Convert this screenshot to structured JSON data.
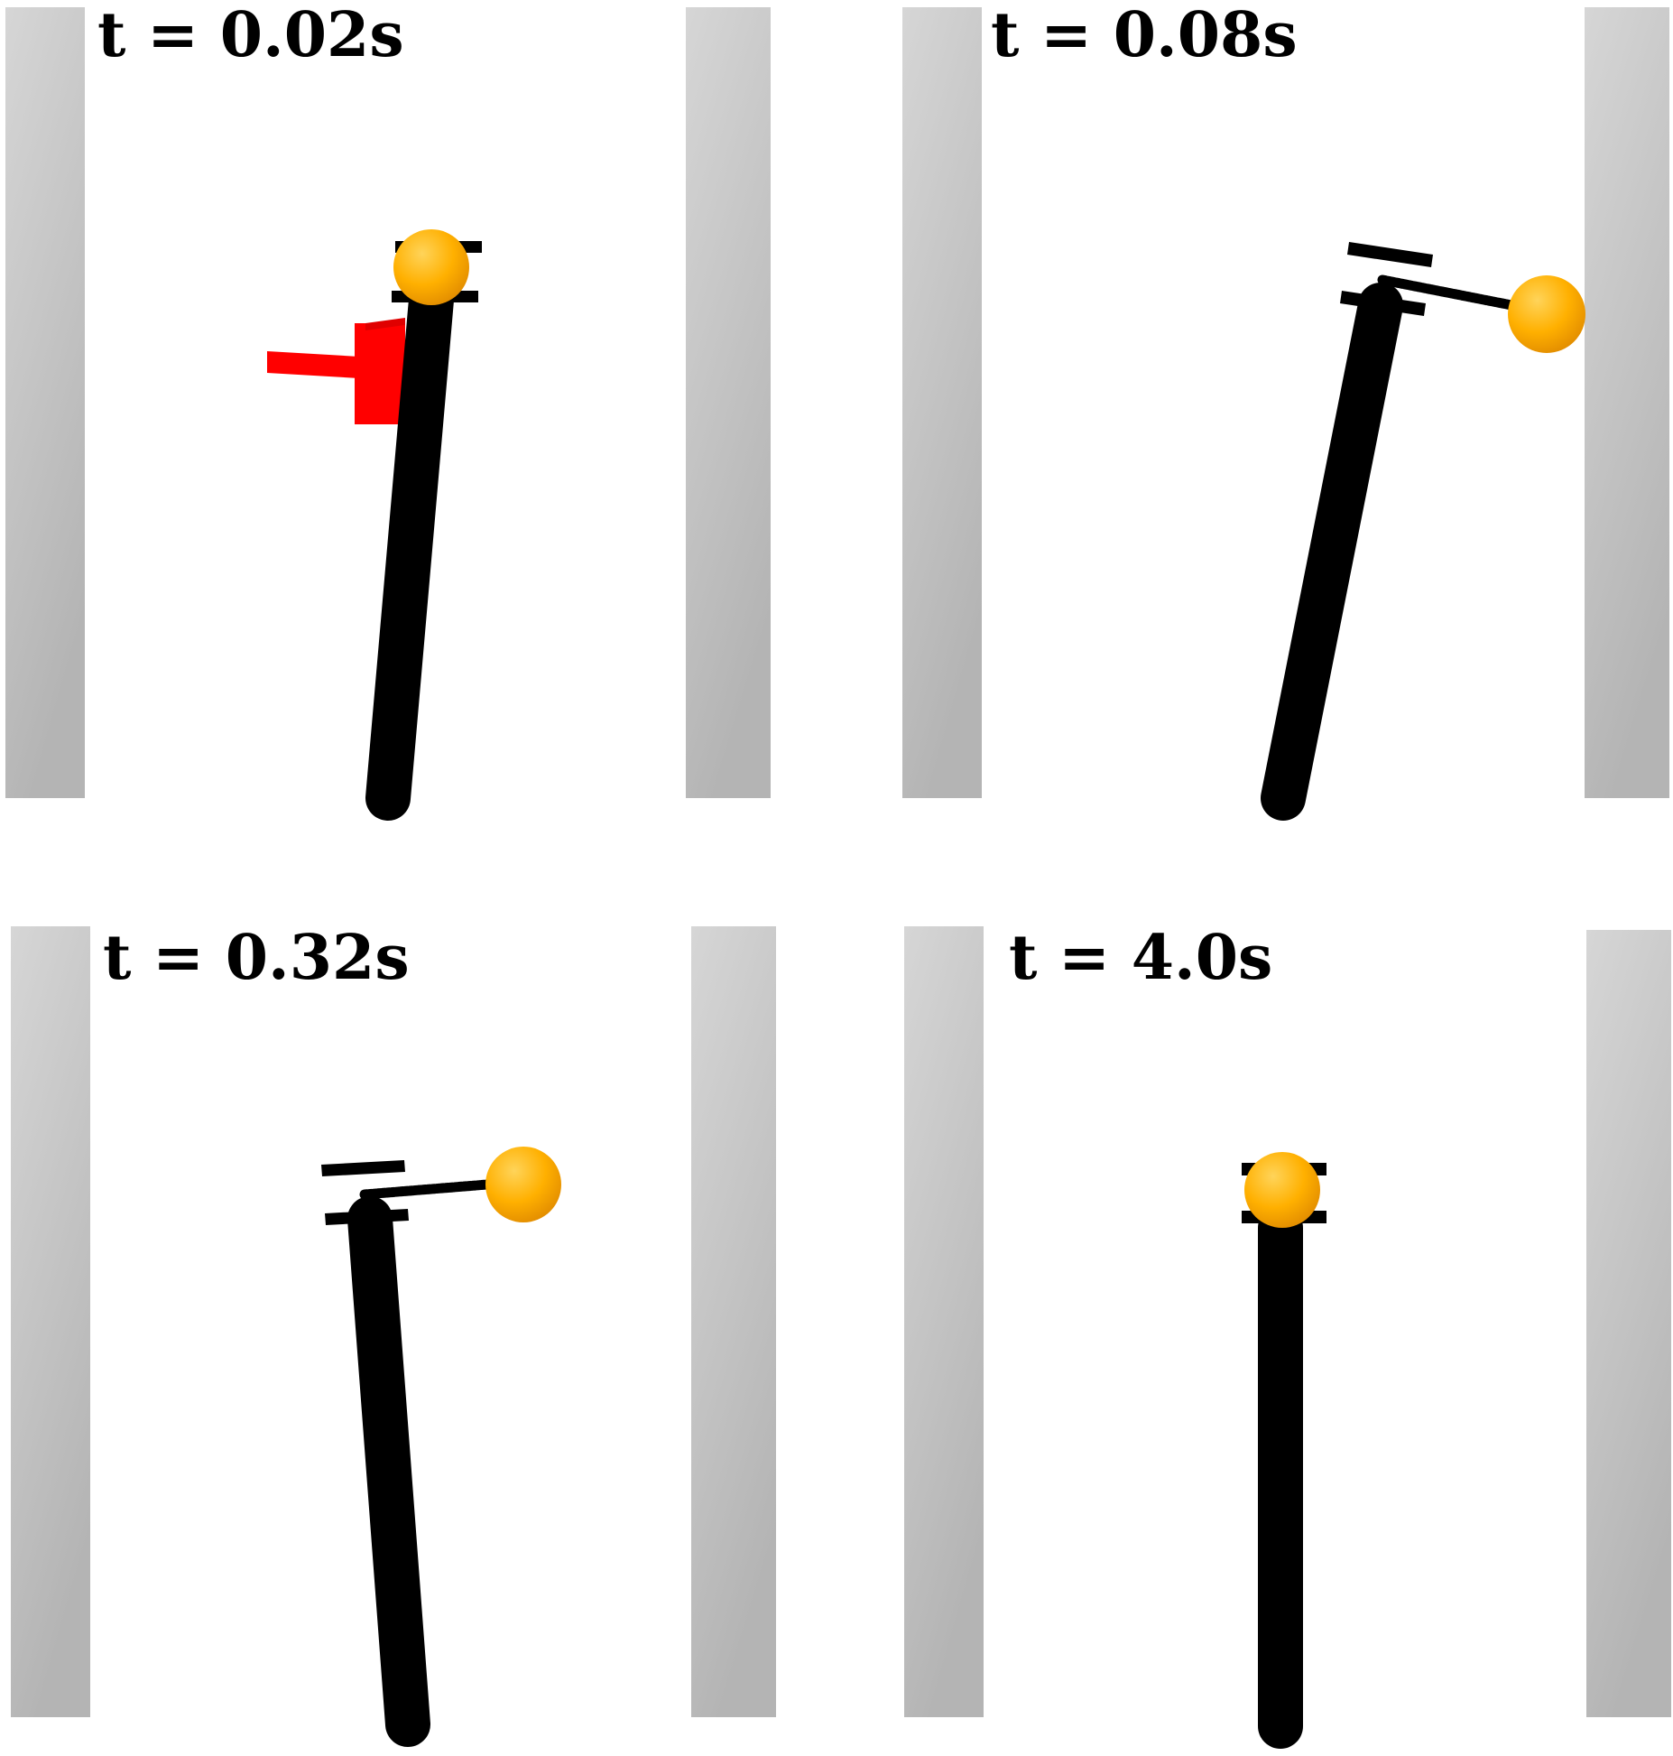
{
  "panels": [
    {
      "time_label": "t = 0.02s"
    },
    {
      "time_label": "t = 0.08s"
    },
    {
      "time_label": "t = 0.32s"
    },
    {
      "time_label": "t = 4.0s"
    }
  ],
  "colors": {
    "background": "#ffffff",
    "wall": "#bdbdbd",
    "pole": "#000000",
    "ball": "#ffb000",
    "applied_force": "#ff0000"
  }
}
